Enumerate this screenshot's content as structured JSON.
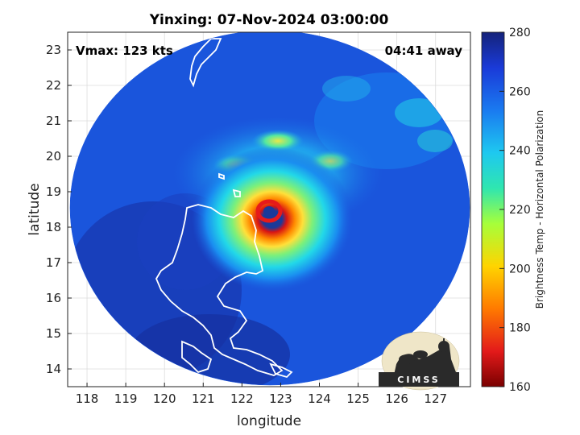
{
  "title": "Yinxing: 07-Nov-2024 03:00:00",
  "vmax_label": "Vmax: 123 kts",
  "time_away_label": "04:41 away",
  "xlabel": "longitude",
  "ylabel": "latitude",
  "colorbar_label": "Brightness Temp - Horizontal Polarization",
  "logo_text": "CIMSS",
  "lon_range": [
    117.5,
    127.9
  ],
  "lat_range": [
    13.5,
    23.5
  ],
  "lon_ticks": [
    "118",
    "119",
    "120",
    "121",
    "122",
    "123",
    "124",
    "125",
    "126",
    "127"
  ],
  "lat_ticks": [
    "14",
    "15",
    "16",
    "17",
    "18",
    "19",
    "20",
    "21",
    "22",
    "23"
  ],
  "colorbar_range": [
    160,
    280
  ],
  "colorbar_ticks": [
    "160",
    "180",
    "200",
    "220",
    "240",
    "260",
    "280"
  ],
  "storm_center": {
    "lon": 122.7,
    "lat": 18.4
  },
  "colors": {
    "background_scan": "#1a4fd6",
    "eye": "#1a3a9a",
    "eyewall": "#d81414",
    "coast": "#ffffff"
  }
}
